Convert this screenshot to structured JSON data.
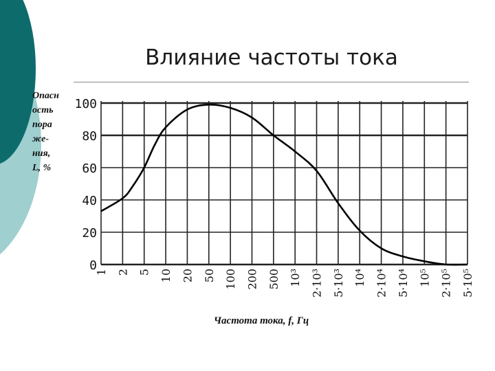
{
  "slide": {
    "title": "Влияние частоты тока",
    "accent_color": "#0e6b6b",
    "accent_light": "#9fcfcf"
  },
  "chart_data": {
    "type": "line",
    "title": "",
    "ylabel_lines": [
      "Опасн",
      "ость",
      "пора",
      "же-",
      "ния,",
      "L, %"
    ],
    "xlabel": "Частота тока, f, Гц",
    "x_ticks": [
      "1",
      "2",
      "5",
      "10",
      "20",
      "50",
      "100",
      "200",
      "500",
      "10³",
      "2·10³",
      "5·10³",
      "10⁴",
      "2·10⁴",
      "5·10⁴",
      "10⁵",
      "2·10⁵",
      "5·10⁵"
    ],
    "y_ticks": [
      "0",
      "20",
      "40",
      "60",
      "80",
      "100"
    ],
    "ylim": [
      0,
      100
    ],
    "grid": true,
    "series": [
      {
        "x": [
          1,
          2,
          3,
          5,
          7,
          10,
          20,
          50,
          100,
          200,
          500,
          1000,
          2000,
          5000,
          10000,
          20000,
          50000,
          100000,
          200000,
          500000
        ],
        "y": [
          33,
          41,
          48,
          60,
          74,
          85,
          96,
          99,
          97,
          91,
          80,
          70,
          58,
          38,
          21,
          10,
          5,
          2,
          0,
          0
        ]
      }
    ]
  }
}
